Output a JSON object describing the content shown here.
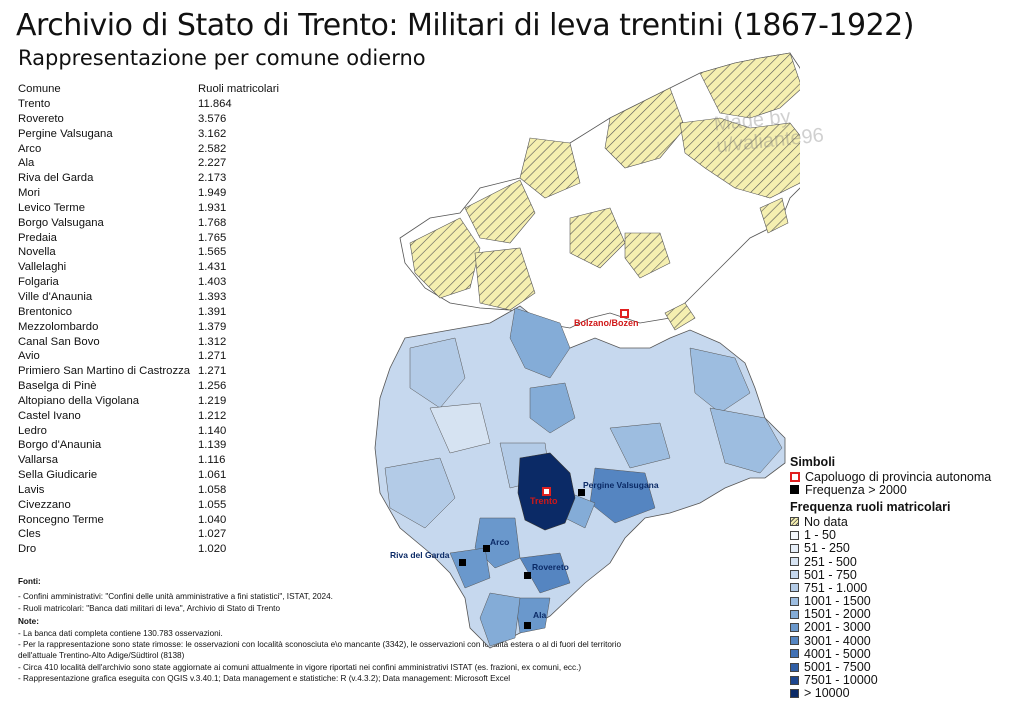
{
  "title": "Archivio di Stato di Trento: Militari di leva trentini (1867-1922)",
  "subtitle": "Rappresentazione per comune odierno",
  "table": {
    "col1": "Comune",
    "col2": "Ruoli matricolari",
    "rows": [
      [
        "Trento",
        "11.864"
      ],
      [
        "Rovereto",
        "3.576"
      ],
      [
        "Pergine Valsugana",
        "3.162"
      ],
      [
        "Arco",
        "2.582"
      ],
      [
        "Ala",
        "2.227"
      ],
      [
        "Riva del Garda",
        "2.173"
      ],
      [
        "Mori",
        "1.949"
      ],
      [
        "Levico Terme",
        "1.931"
      ],
      [
        "Borgo Valsugana",
        "1.768"
      ],
      [
        "Predaia",
        "1.765"
      ],
      [
        "Novella",
        "1.565"
      ],
      [
        "Vallelaghi",
        "1.431"
      ],
      [
        "Folgaria",
        "1.403"
      ],
      [
        "Ville d'Anaunia",
        "1.393"
      ],
      [
        "Brentonico",
        "1.391"
      ],
      [
        "Mezzolombardo",
        "1.379"
      ],
      [
        "Canal San Bovo",
        "1.312"
      ],
      [
        "Avio",
        "1.271"
      ],
      [
        "Primiero San Martino di Castrozza",
        "1.271"
      ],
      [
        "Baselga di Pinè",
        "1.256"
      ],
      [
        "Altopiano della Vigolana",
        "1.219"
      ],
      [
        "Castel Ivano",
        "1.212"
      ],
      [
        "Ledro",
        "1.140"
      ],
      [
        "Borgo d'Anaunia",
        "1.139"
      ],
      [
        "Vallarsa",
        "1.116"
      ],
      [
        "Sella Giudicarie",
        "1.061"
      ],
      [
        "Lavis",
        "1.058"
      ],
      [
        "Civezzano",
        "1.055"
      ],
      [
        "Roncegno Terme",
        "1.040"
      ],
      [
        "Cles",
        "1.027"
      ],
      [
        "Dro",
        "1.020"
      ]
    ]
  },
  "notes": {
    "fonti_title": "Fonti:",
    "fonti": [
      "- Confini amministrativi: \"Confini delle unità amministrative a fini statistici\", ISTAT, 2024.",
      "- Ruoli matricolari: \"Banca dati militari di leva\", Archivio di Stato di Trento"
    ],
    "note_title": "Note:",
    "note": [
      "- La banca dati completa contiene 130.783 osservazioni.",
      "- Per la rappresentazione sono state rimosse: le osservazioni con località sconosciuta e\\o mancante (3342), le osservazioni con località estera o al di fuori del territorio dell'attuale Trentino-Alto Adige/Südtirol (8138)",
      "- Circa 410 località dell'archivio sono state aggiornate ai comuni attualmente in vigore riportati nei confini amministrativi ISTAT (es. frazioni, ex comuni, ecc.)",
      "- Rappresentazione grafica eseguita con QGIS v.3.40.1; Data management e statistiche: R (v.4.3.2); Data management: Microsoft Excel"
    ]
  },
  "map_labels": {
    "bolzano": "Bolzano/Bozen",
    "trento": "Trento",
    "pergine": "Pergine Valsugana",
    "arco": "Arco",
    "riva": "Riva del Garda",
    "rovereto": "Rovereto",
    "ala": "Ala"
  },
  "watermark": [
    "Made by",
    "u/valiante96"
  ],
  "legend": {
    "symbols_title": "Simboli",
    "sym_capital": "Capoluogo di provincia autonoma",
    "sym_freq": "Frequenza > 2000",
    "freq_title": "Frequenza ruoli matricolari",
    "classes": [
      {
        "label": "No data",
        "color": "#f5efb0",
        "hatch": true
      },
      {
        "label": "1 - 50",
        "color": "#f4f8fd"
      },
      {
        "label": "51 - 250",
        "color": "#e6eef8"
      },
      {
        "label": "251 - 500",
        "color": "#d6e3f2"
      },
      {
        "label": "501 - 750",
        "color": "#c6d8ee"
      },
      {
        "label": "751 - 1.000",
        "color": "#b3cbe7"
      },
      {
        "label": "1001 - 1500",
        "color": "#9dbde0"
      },
      {
        "label": "1501 - 2000",
        "color": "#84acd7"
      },
      {
        "label": "2001 - 3000",
        "color": "#6a98cc"
      },
      {
        "label": "3001 - 4000",
        "color": "#5585c1"
      },
      {
        "label": "4001 - 5000",
        "color": "#4271b4"
      },
      {
        "label": "5001 - 7500",
        "color": "#2f5ea5"
      },
      {
        "label": "7501 - 10000",
        "color": "#1d468e"
      },
      {
        "label": "> 10000",
        "color": "#0b2a66"
      }
    ]
  }
}
